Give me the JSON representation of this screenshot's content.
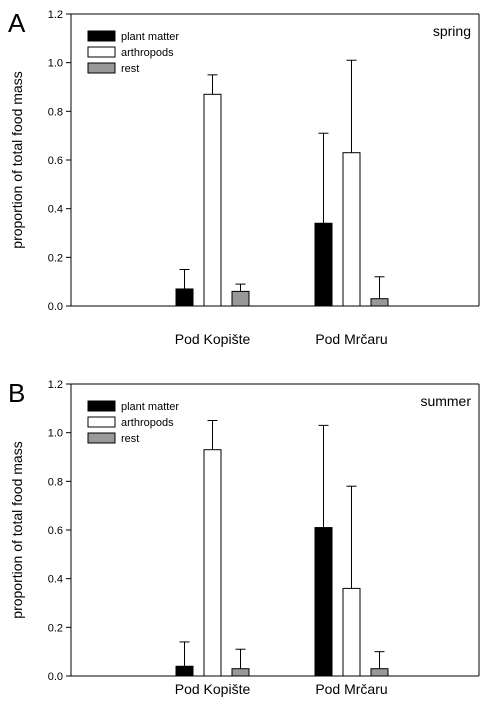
{
  "chart_data": [
    {
      "type": "bar",
      "panel_label": "A",
      "season_label": "spring",
      "ylabel": "proportion of total food mass",
      "xlabel": "",
      "categories": [
        "Pod Kopište",
        "Pod Mrčaru"
      ],
      "ylim": [
        0,
        1.2
      ],
      "yticks": [
        "0.0",
        "0.2",
        "0.4",
        "0.6",
        "0.8",
        "1.0",
        "1.2"
      ],
      "series": [
        {
          "name": "plant matter",
          "color": "#000000",
          "values": [
            0.07,
            0.34
          ],
          "error": [
            0.08,
            0.37
          ]
        },
        {
          "name": "arthropods",
          "color": "#ffffff",
          "values": [
            0.87,
            0.63
          ],
          "error": [
            0.08,
            0.38
          ]
        },
        {
          "name": "rest",
          "color": "#999999",
          "values": [
            0.06,
            0.03
          ],
          "error": [
            0.03,
            0.09
          ]
        }
      ],
      "legend_position": "top-left",
      "grid": false
    },
    {
      "type": "bar",
      "panel_label": "B",
      "season_label": "summer",
      "ylabel": "proportion of total food mass",
      "xlabel": "",
      "categories": [
        "Pod Kopište",
        "Pod Mrčaru"
      ],
      "ylim": [
        0,
        1.2
      ],
      "yticks": [
        "0.0",
        "0.2",
        "0.4",
        "0.6",
        "0.8",
        "1.0",
        "1.2"
      ],
      "series": [
        {
          "name": "plant matter",
          "color": "#000000",
          "values": [
            0.04,
            0.61
          ],
          "error": [
            0.1,
            0.42
          ]
        },
        {
          "name": "arthropods",
          "color": "#ffffff",
          "values": [
            0.93,
            0.36
          ],
          "error": [
            0.12,
            0.42
          ]
        },
        {
          "name": "rest",
          "color": "#999999",
          "values": [
            0.03,
            0.03
          ],
          "error": [
            0.08,
            0.07
          ]
        }
      ],
      "legend_position": "top-left",
      "grid": false
    }
  ]
}
